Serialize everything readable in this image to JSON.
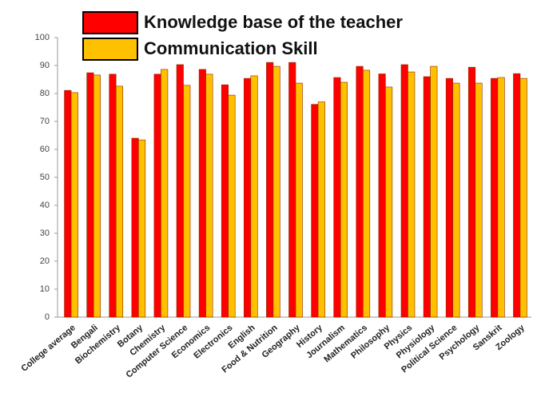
{
  "chart_data": {
    "type": "bar",
    "categories": [
      "College average",
      "Bengali",
      "Biochemistry",
      "Botany",
      "Chemistry",
      "Computer Science",
      "Economics",
      "Electronics",
      "English",
      "Food & Nutrition",
      "Geography",
      "History",
      "Journalism",
      "Mathematics",
      "Philosophy",
      "Physics",
      "Physiology",
      "Political Science",
      "Psychology",
      "Sanskrit",
      "Zoology"
    ],
    "series": [
      {
        "name": "Knowledge base of the teacher",
        "color": "#ff0000",
        "values": [
          81.1,
          87.4,
          86.9,
          64,
          86.9,
          90.3,
          88.6,
          83.1,
          85.4,
          91.1,
          91.1,
          76.1,
          85.7,
          89.7,
          87,
          90.3,
          86,
          85.4,
          89.4,
          85.4,
          87.1
        ]
      },
      {
        "name": "Communication Skill",
        "color": "#ffc000",
        "values": [
          80.3,
          86.6,
          82.6,
          63.4,
          88.6,
          82.9,
          86.9,
          79.4,
          86.3,
          89.7,
          83.7,
          77,
          84,
          88.3,
          82.3,
          87.7,
          89.7,
          83.7,
          83.7,
          85.7,
          85.4
        ]
      }
    ],
    "ylim": [
      0,
      100
    ],
    "yticks": [
      0,
      10,
      20,
      30,
      40,
      50,
      60,
      70,
      80,
      90,
      100
    ],
    "grid": false,
    "legend": "top"
  }
}
